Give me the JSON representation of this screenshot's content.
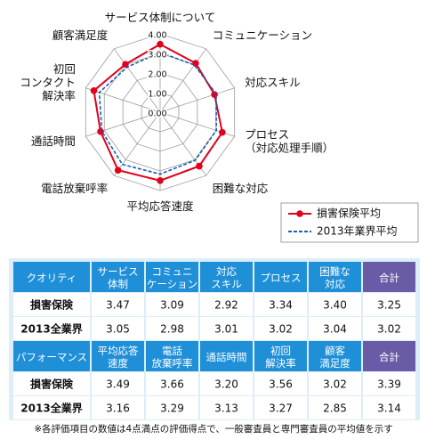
{
  "chart_data": {
    "type": "radar",
    "categories": [
      [
        "サービス体制について"
      ],
      [
        "コミュニケーション"
      ],
      [
        "対応スキル"
      ],
      [
        "プロセス",
        "（対応処理手順）"
      ],
      [
        "困難な対応"
      ],
      [
        "平均応答速度"
      ],
      [
        "電話放棄呼率"
      ],
      [
        "通話時間"
      ],
      [
        "初回",
        "コンタクト",
        "解決率"
      ],
      [
        "顧客満足度"
      ]
    ],
    "series": [
      {
        "name": "損害保険平均",
        "color": "#e2001a",
        "values": [
          3.47,
          3.09,
          2.92,
          3.34,
          3.4,
          3.49,
          3.66,
          3.2,
          3.56,
          3.02
        ]
      },
      {
        "name": "2013年業界平均",
        "color": "#1a5cb8",
        "values": [
          3.05,
          2.98,
          3.01,
          3.02,
          3.04,
          3.16,
          3.29,
          3.13,
          3.27,
          2.85
        ]
      }
    ],
    "rlim": [
      0,
      4
    ],
    "rticks": [
      {
        "value": 0,
        "label": "0.00"
      },
      {
        "value": 1,
        "label": "1.00"
      },
      {
        "value": 2,
        "label": "2.00"
      },
      {
        "value": 3,
        "label": "3.00"
      },
      {
        "value": 4,
        "label": "4.00"
      }
    ],
    "grid": true,
    "legend": "bottom-right"
  },
  "table": {
    "blocks": [
      {
        "header": [
          [
            "クオリティ"
          ],
          [
            "サービス",
            "体制"
          ],
          [
            "コミュニ",
            "ケーション"
          ],
          [
            "対応",
            "スキル"
          ],
          [
            "プロセス"
          ],
          [
            "困難な",
            "対応"
          ],
          [
            "合計"
          ]
        ],
        "rows": [
          [
            "損害保険",
            "3.47",
            "3.09",
            "2.92",
            "3.34",
            "3.40",
            "3.25"
          ],
          [
            "2013全業界",
            "3.05",
            "2.98",
            "3.01",
            "3.02",
            "3.04",
            "3.02"
          ]
        ]
      },
      {
        "header": [
          [
            "パフォーマンス"
          ],
          [
            "平均応答",
            "速度"
          ],
          [
            "電話",
            "放棄呼率"
          ],
          [
            "通話時間"
          ],
          [
            "初回",
            "解決率"
          ],
          [
            "顧客",
            "満足度"
          ],
          [
            "合計"
          ]
        ],
        "rows": [
          [
            "損害保険",
            "3.49",
            "3.66",
            "3.20",
            "3.56",
            "3.02",
            "3.39"
          ],
          [
            "2013全業界",
            "3.16",
            "3.29",
            "3.13",
            "3.27",
            "2.85",
            "3.14"
          ]
        ]
      }
    ]
  },
  "footnote": "※各評価項目の数値は4点満点の評価得点で、一般審査員と専門審査員の平均値を示す"
}
